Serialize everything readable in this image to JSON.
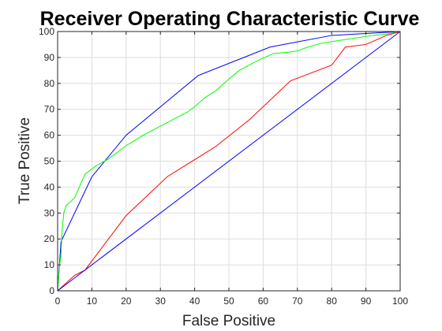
{
  "chart_data": {
    "type": "line",
    "title": "Receiver Operating Characteristic Curve",
    "xlabel": "False Positive",
    "ylabel": "True Positive",
    "xlim": [
      0,
      100
    ],
    "ylim": [
      0,
      100
    ],
    "xticks": [
      0,
      10,
      20,
      30,
      40,
      50,
      60,
      70,
      80,
      90,
      100
    ],
    "yticks": [
      0,
      10,
      20,
      30,
      40,
      50,
      60,
      70,
      80,
      90,
      100
    ],
    "grid": true,
    "series": [
      {
        "color": "#0000ff",
        "x": [
          0,
          1,
          10,
          20,
          41,
          62,
          80,
          100
        ],
        "y": [
          0,
          19,
          44,
          60,
          83,
          94,
          98.5,
          100
        ]
      },
      {
        "color": "#00ff00",
        "x": [
          0,
          0.3,
          0.6,
          1,
          1.3,
          1.8,
          2.5,
          3.5,
          5,
          8,
          11,
          15,
          20,
          25,
          30,
          35,
          38,
          40,
          43,
          46,
          49,
          53,
          58,
          63,
          67,
          70,
          73,
          77,
          82,
          87,
          92,
          96,
          100
        ],
        "y": [
          0,
          5,
          10,
          14,
          23,
          30,
          33,
          34,
          36,
          45,
          48,
          51,
          56,
          60,
          63.5,
          67,
          69,
          71,
          74.5,
          77,
          80.5,
          85,
          88.5,
          91.5,
          92,
          92.5,
          94,
          95.5,
          96.5,
          97.5,
          98.5,
          99,
          100
        ]
      },
      {
        "color": "#ff0000",
        "x": [
          0,
          5,
          8,
          12,
          20,
          32,
          46,
          56,
          68,
          80,
          84,
          90,
          96,
          100
        ],
        "y": [
          0,
          6,
          8,
          15,
          29,
          44,
          55.5,
          66,
          81,
          87,
          94,
          95,
          98.5,
          100
        ]
      },
      {
        "color": "#0000ff",
        "x": [
          0,
          100
        ],
        "y": [
          0,
          100
        ]
      }
    ]
  }
}
